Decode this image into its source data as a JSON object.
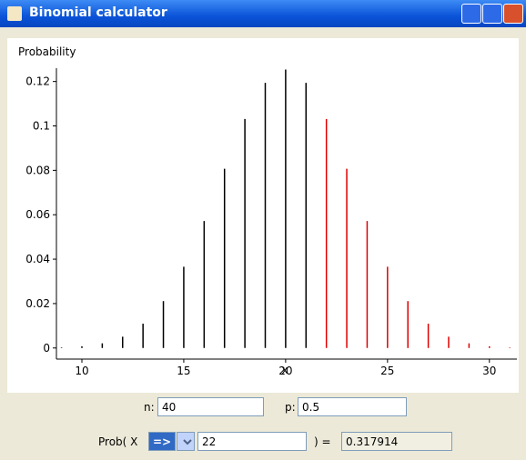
{
  "window": {
    "title": "Binomial calculator"
  },
  "chart_data": {
    "type": "stem",
    "ylabel": "Probability",
    "xlabel": "x",
    "xlim": [
      8.75,
      31.35
    ],
    "xticks": [
      10,
      15,
      20,
      25,
      30
    ],
    "ylim": [
      -0.005,
      0.126
    ],
    "yticks": [
      0,
      0.02,
      0.04,
      0.06,
      0.08,
      0.1,
      0.12
    ],
    "series": [
      {
        "color": "#000000",
        "x": [
          9,
          10,
          11,
          12,
          13,
          14,
          15,
          16,
          17,
          18,
          19,
          20,
          21
        ],
        "values": [
          0.00025,
          0.00077,
          0.0021,
          0.00508,
          0.01094,
          0.02111,
          0.03658,
          0.05716,
          0.0807,
          0.10312,
          0.1194,
          0.12537,
          0.1194
        ]
      },
      {
        "color": "#e00000",
        "x": [
          22,
          23,
          24,
          25,
          26,
          27,
          28,
          29,
          30,
          31
        ],
        "values": [
          0.10312,
          0.0807,
          0.05716,
          0.03658,
          0.02111,
          0.01094,
          0.00508,
          0.0021,
          0.00077,
          0.00025
        ]
      }
    ]
  },
  "form": {
    "n_label": "n:",
    "n": 40,
    "p_label": "p:",
    "p": 0.5,
    "prob_label": "Prob( X",
    "operator": "=>",
    "k": 22,
    "equals": ") =",
    "result": 0.317914
  }
}
